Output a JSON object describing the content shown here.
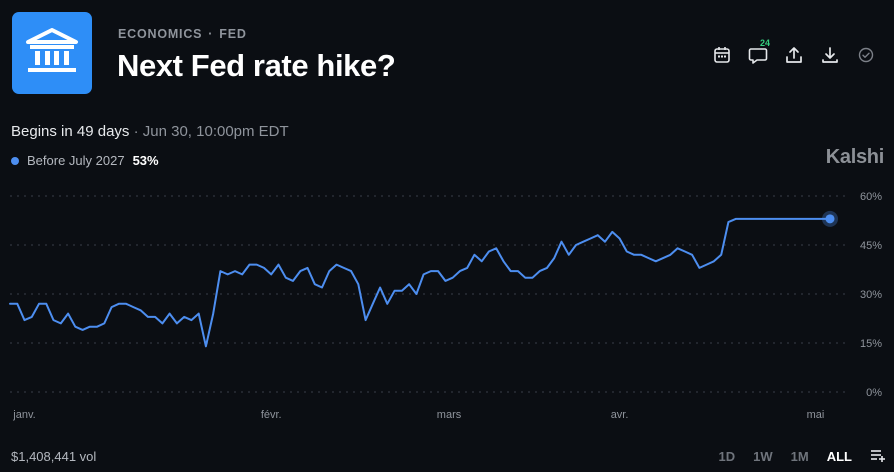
{
  "header": {
    "breadcrumb_category": "ECONOMICS",
    "breadcrumb_separator": "·",
    "breadcrumb_topic": "FED",
    "title": "Next Fed rate hike?",
    "logo_icon": "bank-building-icon",
    "logo_color": "#2e8ef7"
  },
  "actions": {
    "calendar_icon": "calendar-icon",
    "comments_icon": "comment-icon",
    "comments_count": "24",
    "share_icon": "share-icon",
    "download_icon": "download-icon",
    "check_icon": "check-circle-icon"
  },
  "event": {
    "begins": "Begins in 49 days",
    "separator": "·",
    "datetime": "Jun 30, 10:00pm EDT"
  },
  "legend": {
    "label": "Before July 2027",
    "value": "53%",
    "color": "#4d8ef0"
  },
  "brand": "Kalshi",
  "footer": {
    "volume": "$1,408,441 vol",
    "ranges": [
      "1D",
      "1W",
      "1M",
      "ALL"
    ],
    "active_range": "ALL",
    "list_icon": "list-add-icon"
  },
  "chart_data": {
    "type": "line",
    "y_ticks": [
      "60%",
      "45%",
      "30%",
      "15%",
      "0%"
    ],
    "y_tick_values": [
      60,
      45,
      30,
      15,
      0
    ],
    "ylim": [
      0,
      60
    ],
    "x_ticks": [
      "janv.",
      "févr.",
      "mars",
      "avr.",
      "mai"
    ],
    "x_tick_positions": [
      2,
      36,
      60.5,
      84,
      111
    ],
    "xlim": [
      0,
      113
    ],
    "grid": true,
    "series": [
      {
        "name": "Before July 2027",
        "color": "#4d8ef0",
        "x": [
          0,
          1,
          2,
          3,
          4,
          5,
          6,
          7,
          8,
          9,
          10,
          11,
          12,
          13,
          14,
          15,
          16,
          17,
          18,
          19,
          20,
          21,
          22,
          23,
          24,
          25,
          26,
          27,
          28,
          29,
          30,
          31,
          32,
          33,
          34,
          35,
          36,
          37,
          38,
          39,
          40,
          41,
          42,
          43,
          44,
          45,
          46,
          47,
          48,
          49,
          50,
          51,
          52,
          53,
          54,
          55,
          56,
          57,
          58,
          59,
          60,
          61,
          62,
          63,
          64,
          65,
          66,
          67,
          68,
          69,
          70,
          71,
          72,
          73,
          74,
          75,
          76,
          77,
          78,
          79,
          80,
          81,
          82,
          83,
          84,
          85,
          86,
          87,
          88,
          89,
          90,
          91,
          92,
          93,
          94,
          95,
          96,
          97,
          98,
          99,
          100,
          101,
          102,
          103,
          104,
          105,
          106,
          107,
          108,
          109,
          110,
          111,
          112,
          113
        ],
        "values": [
          27,
          27,
          22,
          23,
          27,
          27,
          22,
          21,
          24,
          20,
          19,
          20,
          20,
          21,
          26,
          27,
          27,
          26,
          25,
          23,
          23,
          21,
          24,
          21,
          23,
          22,
          24,
          14,
          24,
          37,
          36,
          37,
          36,
          39,
          39,
          38,
          36,
          39,
          35,
          34,
          37,
          38,
          33,
          32,
          37,
          39,
          38,
          37,
          33,
          22,
          27,
          32,
          27,
          31,
          31,
          33,
          30,
          36,
          37,
          37,
          34,
          35,
          37,
          38,
          42,
          40,
          43,
          44,
          40,
          37,
          37,
          35,
          35,
          37,
          38,
          41,
          46,
          42,
          45,
          46,
          47,
          48,
          46,
          49,
          47,
          43,
          42,
          42,
          41,
          40,
          41,
          42,
          44,
          43,
          42,
          38,
          39,
          40,
          42,
          52,
          53,
          53,
          53,
          53,
          53,
          53,
          53,
          53,
          53,
          53,
          53,
          53,
          53,
          53
        ]
      }
    ]
  }
}
